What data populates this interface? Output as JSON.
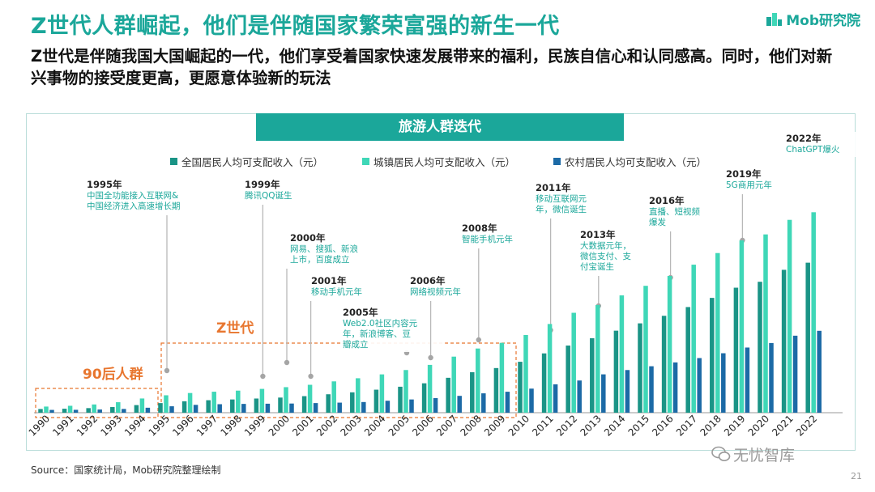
{
  "header": {
    "title": "Z世代人群崛起，他们是伴随国家繁荣富强的新生一代",
    "subtitle": "Z世代是伴随我国大国崛起的一代，他们享受着国家快速发展带来的福利，民族自信心和认同感高。同时，他们对新兴事物的接受度更高，更愿意体验新的玩法"
  },
  "logo": {
    "text": "Mob研究院"
  },
  "banner": {
    "text": "旅游人群迭代"
  },
  "footer": {
    "source": "Source：国家统计局，Mob研究院整理绘制",
    "page": "21",
    "watermark": "无忧智库"
  },
  "colors": {
    "national": "#1a9486",
    "urban": "#3fd7b7",
    "rural": "#1c6aa6",
    "accent": "#1ba79a",
    "orange": "#e8762f"
  },
  "groups": {
    "gen90": "90后人群",
    "genZ": "Z世代"
  },
  "chart_data": {
    "type": "bar",
    "categories": [
      "1990",
      "1991",
      "1992",
      "1993",
      "1994",
      "1995",
      "1996",
      "1997",
      "1998",
      "1999",
      "2000",
      "2001",
      "2002",
      "2003",
      "2004",
      "2005",
      "2006",
      "2007",
      "2008",
      "2009",
      "2010",
      "2011",
      "2012",
      "2013",
      "2014",
      "2015",
      "2016",
      "2017",
      "2018",
      "2019",
      "2020",
      "2021",
      "2022"
    ],
    "series": [
      {
        "name": "全国居民人均可支配收入（元）",
        "values": [
          904,
          976,
          1125,
          1385,
          1870,
          2363,
          2814,
          3070,
          3254,
          3485,
          3721,
          4070,
          4532,
          5007,
          5661,
          6385,
          7229,
          8584,
          9957,
          10977,
          12520,
          14582,
          16510,
          18311,
          20167,
          21966,
          23821,
          25974,
          28228,
          30733,
          32189,
          35128,
          36883
        ]
      },
      {
        "name": "城镇居民人均可支配收入（元）",
        "values": [
          1510,
          1700,
          2027,
          2577,
          3496,
          4283,
          4839,
          5160,
          5425,
          5854,
          6280,
          6860,
          7703,
          8472,
          9422,
          10493,
          11759,
          13786,
          15781,
          17175,
          19109,
          21810,
          24565,
          26467,
          28844,
          31195,
          33616,
          36396,
          39251,
          42359,
          43834,
          47412,
          49283
        ]
      },
      {
        "name": "农村居民人均可支配收入（元）",
        "values": [
          686,
          709,
          784,
          922,
          1221,
          1578,
          1926,
          2090,
          2162,
          2210,
          2253,
          2366,
          2476,
          2622,
          2936,
          3255,
          3587,
          4140,
          4761,
          5153,
          5919,
          6977,
          7917,
          9430,
          10489,
          11422,
          12363,
          13432,
          14617,
          16021,
          17131,
          18931,
          20133
        ]
      }
    ],
    "ylim": [
      0,
      52000
    ],
    "annotations": [
      {
        "year": "1995",
        "lines": [
          "1995年",
          "中国全功能接入互联网&",
          "中国经济进入高速增长期"
        ]
      },
      {
        "year": "1999",
        "lines": [
          "1999年",
          "腾讯QQ诞生"
        ]
      },
      {
        "year": "2000",
        "lines": [
          "2000年",
          "网易、搜狐、新浪",
          "上市，百度成立"
        ]
      },
      {
        "year": "2001",
        "lines": [
          "2001年",
          "移动手机元年"
        ]
      },
      {
        "year": "2005",
        "lines": [
          "2005年",
          "Web2.0社区内容元",
          "年，新浪博客、豆",
          "瓣成立"
        ]
      },
      {
        "year": "2006",
        "lines": [
          "2006年",
          "网络视频元年"
        ]
      },
      {
        "year": "2008",
        "lines": [
          "2008年",
          "智能手机元年"
        ]
      },
      {
        "year": "2011",
        "lines": [
          "2011年",
          "移动互联网元",
          "年，微信诞生"
        ]
      },
      {
        "year": "2013",
        "lines": [
          "2013年",
          "大数据元年，",
          "微信支付、支",
          "付宝诞生"
        ]
      },
      {
        "year": "2016",
        "lines": [
          "2016年",
          "直播、短视频",
          "爆发"
        ]
      },
      {
        "year": "2019",
        "lines": [
          "2019年",
          "5G商用元年"
        ]
      },
      {
        "year": "2022",
        "lines": [
          "2022年",
          "ChatGPT爆火"
        ]
      }
    ]
  }
}
